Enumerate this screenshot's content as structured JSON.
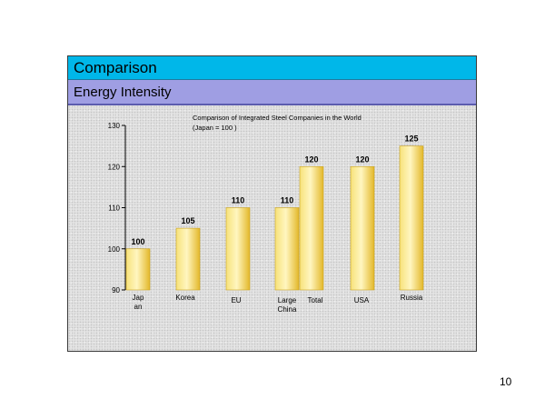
{
  "slide": {
    "title": "Comparison",
    "subtitle": "Energy Intensity",
    "page_number": "10"
  },
  "chart_data": {
    "type": "bar",
    "title": "Comparison of Integrated Steel Companies in the World",
    "subtitle": "(Japan = 100 )",
    "xlabel": "",
    "ylabel": "",
    "ylim": [
      90,
      130
    ],
    "yticks": [
      90,
      100,
      110,
      120,
      130
    ],
    "grid": false,
    "bar_color": "#f2d34a",
    "categories": [
      "Jap an",
      "Korea",
      "EU",
      "Large China",
      "Total",
      "USA",
      "Russia"
    ],
    "category_label_lines": [
      [
        "Jap",
        "an"
      ],
      [
        "Korea"
      ],
      [
        "EU"
      ],
      [
        "Large",
        "China"
      ],
      [
        "Total"
      ],
      [
        "USA"
      ],
      [
        "Russia"
      ]
    ],
    "values": [
      100,
      105,
      110,
      110,
      120,
      120,
      125
    ]
  }
}
